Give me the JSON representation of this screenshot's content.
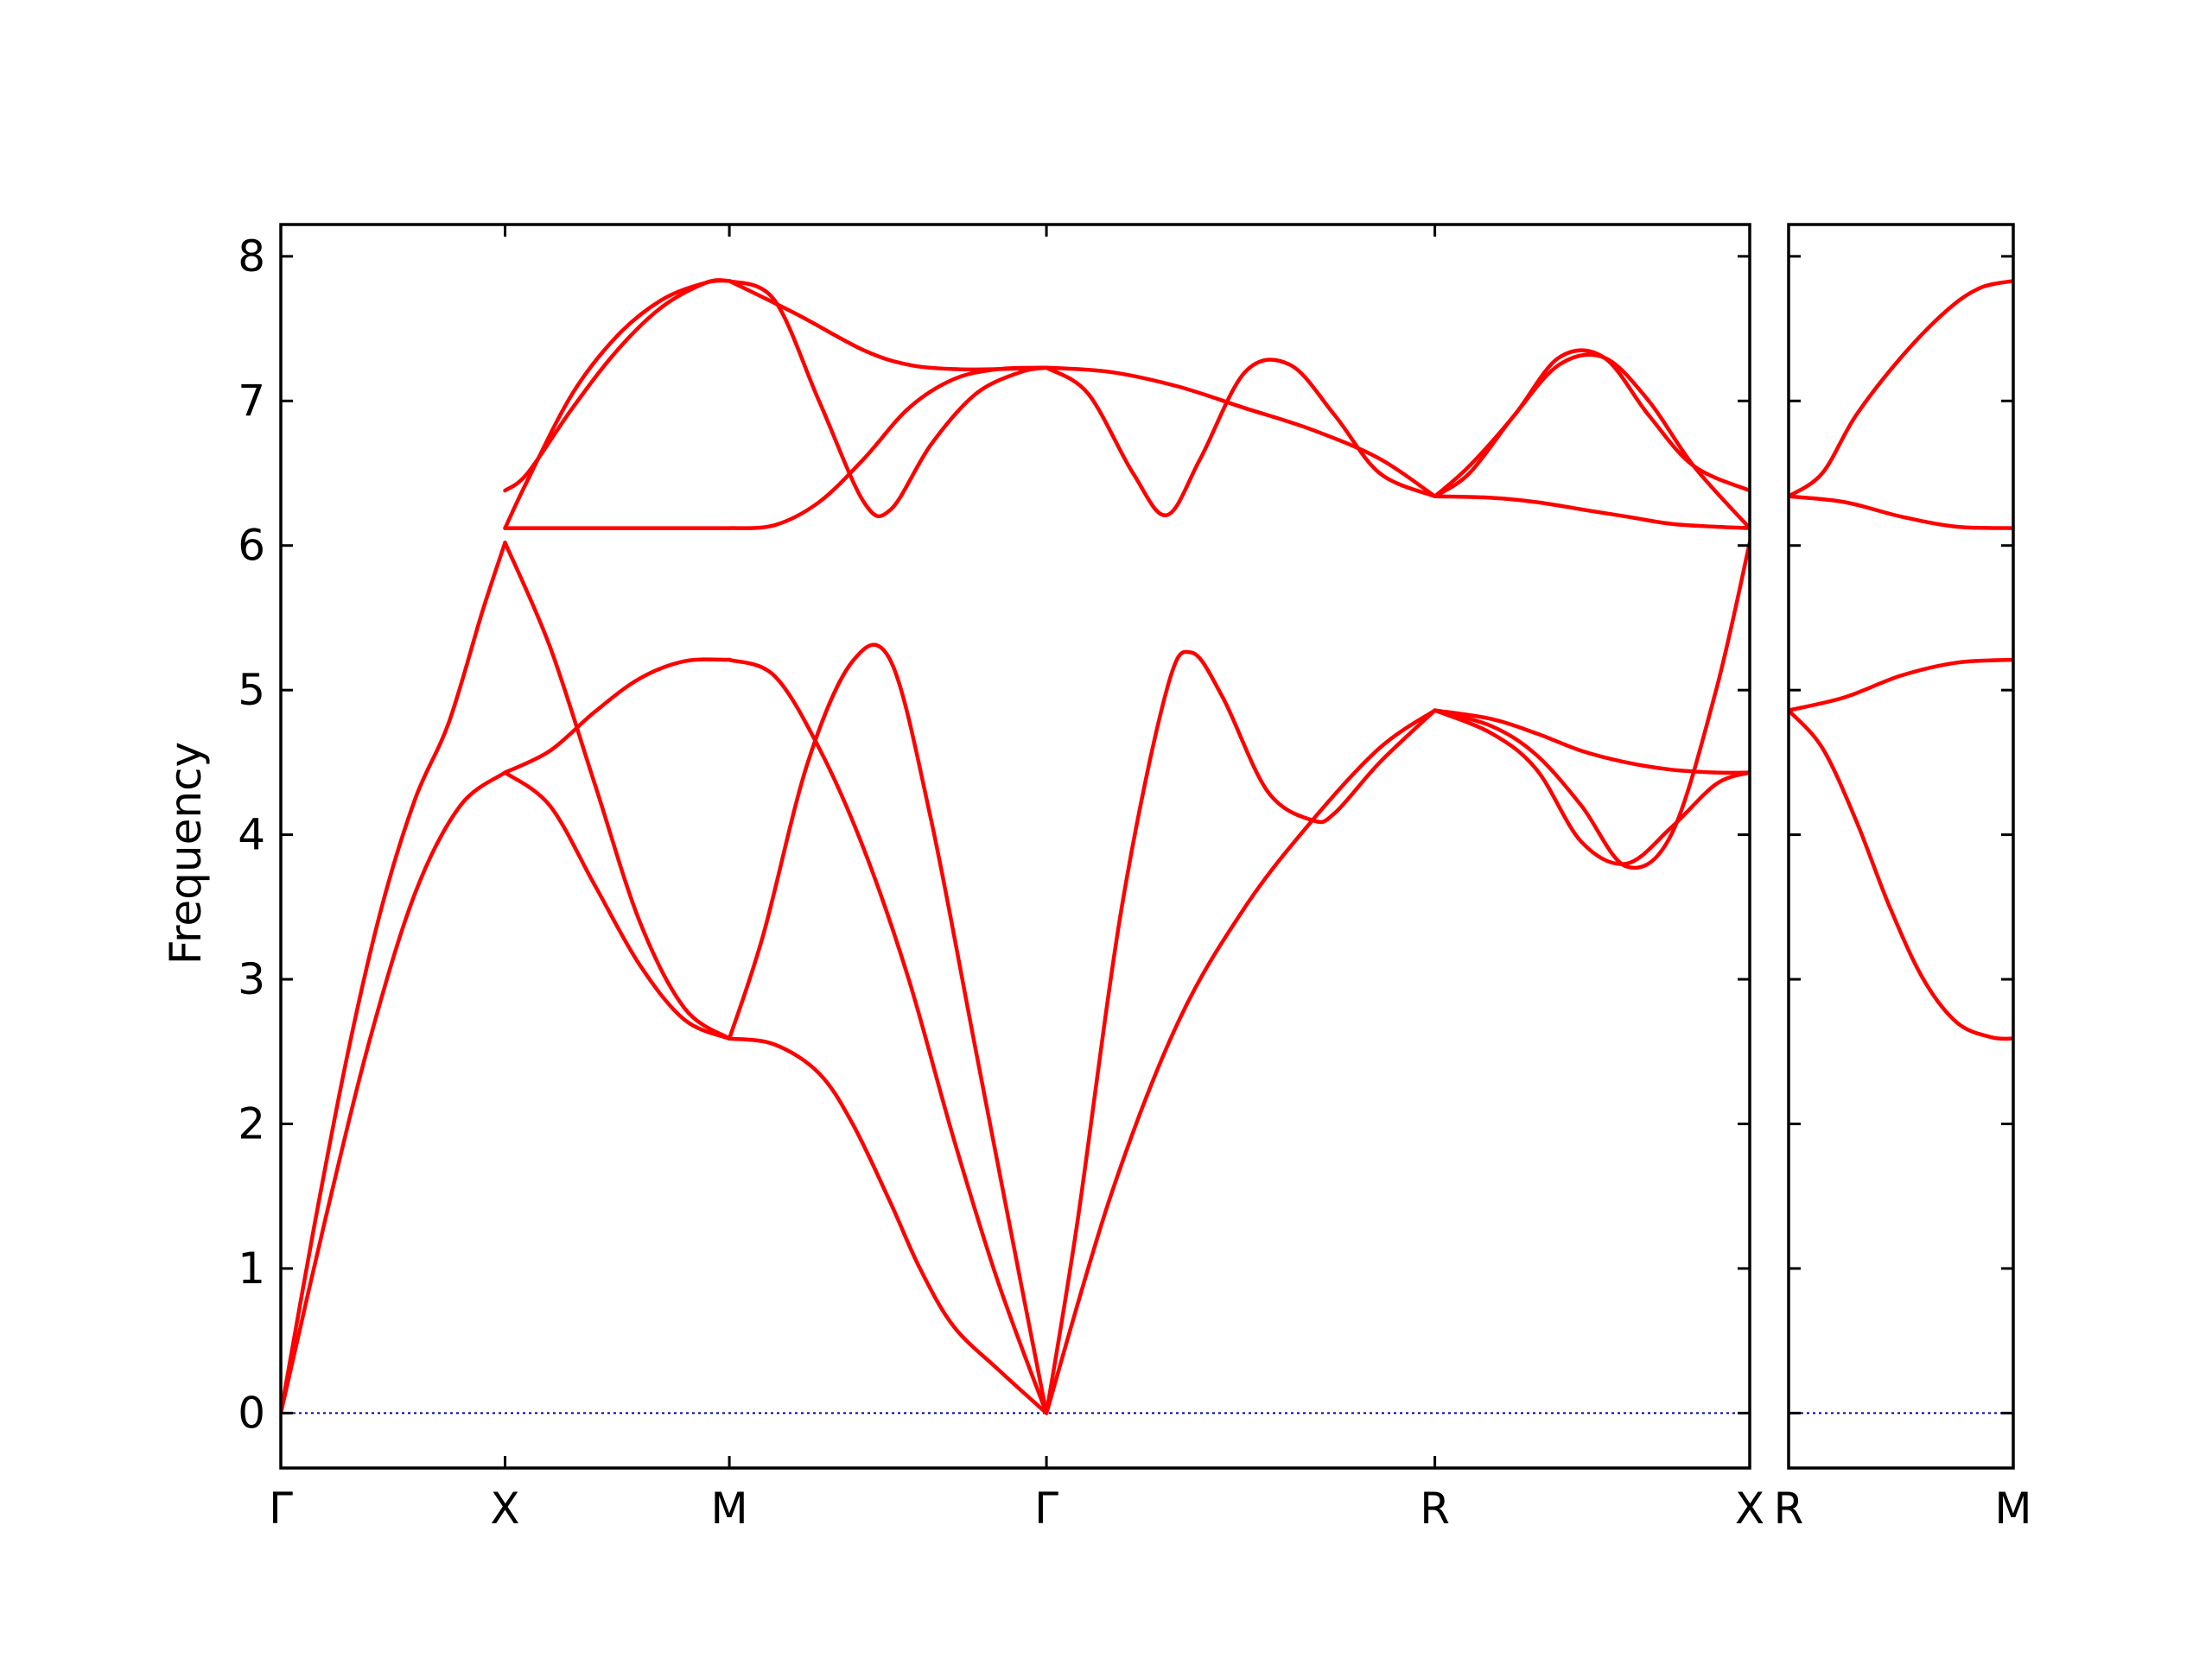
{
  "chart_data": {
    "type": "line",
    "ylabel": "Frequency",
    "xlabel": "",
    "ylim": [
      -0.38,
      8.22
    ],
    "yticks": [
      0,
      1,
      2,
      3,
      4,
      5,
      6,
      7,
      8
    ],
    "grid": false,
    "line_color": "#ff0000",
    "zero_line_color": "#0000aa",
    "panels": [
      {
        "name": "main",
        "x_range": [
          0,
          6.55
        ],
        "ticks": [
          {
            "x": 0,
            "label": "Γ"
          },
          {
            "x": 1,
            "label": "X"
          },
          {
            "x": 2,
            "label": "M"
          },
          {
            "x": 3.414,
            "label": "Γ"
          },
          {
            "x": 5.146,
            "label": "R"
          },
          {
            "x": 6.55,
            "label": "X"
          }
        ],
        "series": [
          {
            "x": [
              0,
              0.15,
              0.3,
              0.45,
              0.6,
              0.75,
              0.9,
              1.0
            ],
            "values": [
              0,
              1.3,
              2.5,
              3.5,
              4.25,
              4.78,
              5.55,
              6.02
            ]
          },
          {
            "x": [
              0,
              0.2,
              0.4,
              0.6,
              0.8,
              1.0
            ],
            "values": [
              0,
              1.35,
              2.6,
              3.6,
              4.2,
              4.43
            ]
          },
          {
            "x": [
              1.0,
              1.2,
              1.4,
              1.6,
              1.8,
              2.0
            ],
            "values": [
              6.02,
              5.3,
              4.35,
              3.4,
              2.8,
              2.59
            ]
          },
          {
            "x": [
              1.0,
              1.2,
              1.4,
              1.6,
              1.8,
              2.0
            ],
            "values": [
              4.43,
              4.2,
              3.65,
              3.1,
              2.72,
              2.59
            ]
          },
          {
            "x": [
              1.0,
              1.2,
              1.4,
              1.6,
              1.8,
              2.0
            ],
            "values": [
              4.43,
              4.58,
              4.85,
              5.08,
              5.2,
              5.21
            ]
          },
          {
            "x": [
              1.0,
              1.2,
              1.4,
              1.6,
              1.8,
              2.0
            ],
            "values": [
              6.12,
              6.12,
              6.12,
              6.12,
              6.12,
              6.12
            ]
          },
          {
            "x": [
              1.0,
              1.1,
              1.3,
              1.5,
              1.7,
              1.9,
              2.0
            ],
            "values": [
              6.12,
              6.45,
              7.05,
              7.45,
              7.7,
              7.82,
              7.83
            ]
          },
          {
            "x": [
              1.0,
              1.1,
              1.3,
              1.5,
              1.7,
              1.9,
              2.0
            ],
            "values": [
              6.38,
              6.5,
              6.95,
              7.35,
              7.65,
              7.82,
              7.83
            ]
          },
          {
            "x": [
              2.0,
              2.2,
              2.4,
              2.55,
              2.72,
              2.85,
              3.0,
              3.2,
              3.414
            ],
            "values": [
              2.59,
              2.55,
              2.35,
              2.0,
              1.45,
              1.0,
              0.6,
              0.3,
              0
            ]
          },
          {
            "x": [
              2.0,
              2.15,
              2.35,
              2.55,
              2.72,
              2.9,
              3.1,
              3.3,
              3.414
            ],
            "values": [
              2.59,
              3.3,
              4.5,
              5.2,
              5.2,
              4.1,
              2.5,
              0.9,
              0
            ]
          },
          {
            "x": [
              2.0,
              2.2,
              2.4,
              2.6,
              2.8,
              3.0,
              3.2,
              3.414
            ],
            "values": [
              5.21,
              5.1,
              4.6,
              3.9,
              3.0,
              1.9,
              0.9,
              0
            ]
          },
          {
            "x": [
              2.0,
              2.2,
              2.4,
              2.6,
              2.8,
              3.0,
              3.2,
              3.414
            ],
            "values": [
              6.12,
              6.14,
              6.3,
              6.6,
              6.95,
              7.15,
              7.22,
              7.23
            ]
          },
          {
            "x": [
              2.0,
              2.3,
              2.6,
              2.8,
              3.0,
              3.2,
              3.414
            ],
            "values": [
              7.83,
              7.6,
              7.35,
              7.25,
              7.22,
              7.22,
              7.23
            ]
          },
          {
            "x": [
              2.0,
              2.2,
              2.4,
              2.6,
              2.72,
              2.9,
              3.1,
              3.3,
              3.414
            ],
            "values": [
              7.83,
              7.7,
              7.0,
              6.3,
              6.25,
              6.7,
              7.05,
              7.2,
              7.23
            ]
          },
          {
            "x": [
              3.414,
              3.55,
              3.75,
              3.95,
              4.06,
              4.2,
              4.4,
              4.6,
              4.7,
              4.9,
              5.146
            ],
            "values": [
              0,
              1.3,
              3.5,
              5.0,
              5.26,
              4.95,
              4.3,
              4.1,
              4.15,
              4.5,
              4.86
            ]
          },
          {
            "x": [
              3.414,
              3.7,
              4.0,
              4.3,
              4.6,
              4.9,
              5.146
            ],
            "values": [
              0,
              1.5,
              2.7,
              3.5,
              4.1,
              4.6,
              4.86
            ]
          },
          {
            "x": [
              3.414,
              3.6,
              3.8,
              3.95,
              4.1,
              4.3,
              4.5,
              4.7,
              4.9,
              5.146
            ],
            "values": [
              7.23,
              7.05,
              6.5,
              6.21,
              6.6,
              7.2,
              7.25,
              6.9,
              6.5,
              6.34
            ]
          },
          {
            "x": [
              3.414,
              3.7,
              4.0,
              4.3,
              4.6,
              4.9,
              5.146
            ],
            "values": [
              7.23,
              7.2,
              7.1,
              6.95,
              6.8,
              6.6,
              6.34
            ]
          },
          {
            "x": [
              5.146,
              5.4,
              5.6,
              5.8,
              6.0,
              6.2,
              6.4,
              6.55
            ],
            "values": [
              4.86,
              4.7,
              4.45,
              3.95,
              3.8,
              4.05,
              4.35,
              4.43
            ]
          },
          {
            "x": [
              5.146,
              5.4,
              5.6,
              5.8,
              6.0,
              6.2,
              6.4,
              6.55
            ],
            "values": [
              4.86,
              4.75,
              4.55,
              4.2,
              3.78,
              4.0,
              5.0,
              6.02
            ]
          },
          {
            "x": [
              5.146,
              5.4,
              5.6,
              5.8,
              6.0,
              6.2,
              6.4,
              6.55
            ],
            "values": [
              4.86,
              4.8,
              4.7,
              4.58,
              4.5,
              4.45,
              4.43,
              4.43
            ]
          },
          {
            "x": [
              5.146,
              5.4,
              5.6,
              5.8,
              6.0,
              6.2,
              6.4,
              6.55
            ],
            "values": [
              6.34,
              6.33,
              6.3,
              6.25,
              6.2,
              6.15,
              6.13,
              6.12
            ]
          },
          {
            "x": [
              5.146,
              5.3,
              5.5,
              5.7,
              5.9,
              6.1,
              6.3,
              6.55
            ],
            "values": [
              6.34,
              6.55,
              6.9,
              7.3,
              7.3,
              6.9,
              6.55,
              6.38
            ]
          },
          {
            "x": [
              5.146,
              5.3,
              5.5,
              5.7,
              5.9,
              6.1,
              6.3,
              6.55
            ],
            "values": [
              6.34,
              6.5,
              6.9,
              7.25,
              7.3,
              7.0,
              6.55,
              6.12
            ]
          }
        ]
      },
      {
        "name": "right",
        "x_range": [
          0,
          1
        ],
        "ticks": [
          {
            "x": 0,
            "label": "R"
          },
          {
            "x": 1,
            "label": "M"
          }
        ],
        "series": [
          {
            "x": [
              0,
              0.15,
              0.3,
              0.5,
              0.7,
              0.85,
              1.0
            ],
            "values": [
              6.34,
              6.5,
              6.9,
              7.3,
              7.62,
              7.78,
              7.83
            ]
          },
          {
            "x": [
              0,
              0.25,
              0.5,
              0.75,
              1.0
            ],
            "values": [
              6.34,
              6.3,
              6.2,
              6.13,
              6.12
            ]
          },
          {
            "x": [
              0,
              0.25,
              0.5,
              0.75,
              1.0
            ],
            "values": [
              4.86,
              4.95,
              5.1,
              5.19,
              5.21
            ]
          },
          {
            "x": [
              0,
              0.15,
              0.3,
              0.45,
              0.6,
              0.75,
              0.9,
              1.0
            ],
            "values": [
              4.86,
              4.6,
              4.1,
              3.5,
              3.0,
              2.7,
              2.6,
              2.59
            ]
          }
        ]
      }
    ]
  }
}
